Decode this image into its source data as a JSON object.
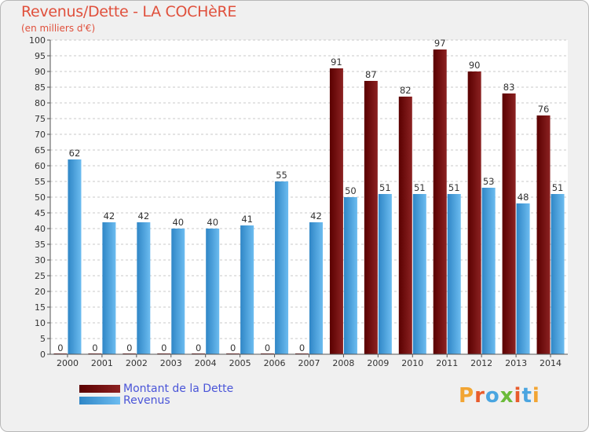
{
  "chart_data": {
    "type": "bar",
    "title": "Revenus/Dette - LA COCHèRE",
    "subtitle": "(en milliers d'€)",
    "categories": [
      "2000",
      "2001",
      "2002",
      "2003",
      "2004",
      "2005",
      "2006",
      "2007",
      "2008",
      "2009",
      "2010",
      "2011",
      "2012",
      "2013",
      "2014"
    ],
    "series": [
      {
        "name": "Montant de la Dette",
        "color": "#6e1010",
        "values": [
          0,
          0,
          0,
          0,
          0,
          0,
          0,
          0,
          91,
          87,
          82,
          97,
          90,
          83,
          76
        ]
      },
      {
        "name": "Revenus",
        "color": "#4fa6e6",
        "values": [
          62,
          42,
          42,
          40,
          40,
          41,
          55,
          42,
          50,
          51,
          51,
          51,
          53,
          48,
          51
        ]
      }
    ],
    "ylim": [
      0,
      100
    ],
    "ytick_step": 5,
    "grid": true,
    "legend_position": "bottom-left"
  },
  "logo": {
    "letters": [
      "P",
      "r",
      "o",
      "x",
      "i",
      "t",
      "i"
    ],
    "colors": [
      "#f2a533",
      "#e85c2c",
      "#4aa5e0",
      "#6bbb3a",
      "#e85c2c",
      "#4aa5e0",
      "#f2a533"
    ]
  }
}
